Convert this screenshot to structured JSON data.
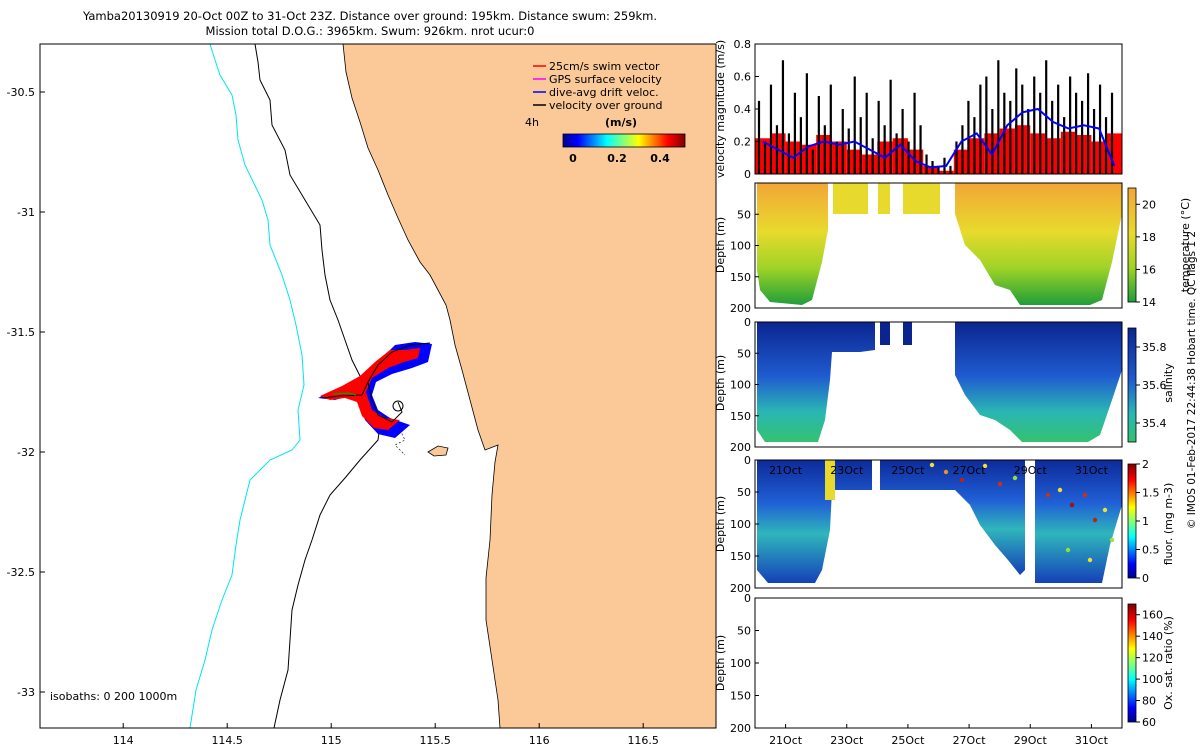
{
  "header": {
    "line1": "Yamba20130919 20-Oct 00Z to 31-Oct 23Z. Distance over ground: 195km. Distance swum: 259km.",
    "line2": "Mission total D.O.G.: 3965km. Swum: 926km. nrot ucur:0"
  },
  "colors": {
    "ocean": "#ffffff",
    "land": "#fbc898",
    "isobath_200": "#000000",
    "isobath_1000": "#00e5ee",
    "swim_vector": "#ff0000",
    "gps_surface_velocity": "#ff00ff",
    "dive_avg_drift": "#0000ff",
    "velocity_over_ground": "#000000"
  },
  "map": {
    "legend": [
      {
        "label": "25cm/s swim vector",
        "color": "#ff0000"
      },
      {
        "label": "GPS surface velocity",
        "color": "#ff00ff"
      },
      {
        "label": "dive-avg drift veloc.",
        "color": "#0000ff"
      },
      {
        "label": "velocity over ground",
        "color": "#000000"
      }
    ],
    "time_marker": "4h",
    "colorbar_title": "(m/s)",
    "colorbar_ticks": [
      "0",
      "0.2",
      "0.4"
    ],
    "isobath_label": "isobaths: 0   200  1000m"
  },
  "side_label": "© IMOS 01-Feb-2017 22:44:38 Hobart time. QC flags 1  2",
  "chart_data": [
    {
      "id": "map",
      "type": "scatter",
      "title": "",
      "xlim": [
        113.6,
        116.85
      ],
      "ylim": [
        -33.15,
        -30.3
      ],
      "x_ticks": [
        "114",
        "114.5",
        "115",
        "115.5",
        "116",
        "116.5"
      ],
      "y_ticks": [
        "-30.5",
        "-31",
        "-31.5",
        "-32",
        "-32.5",
        "-33"
      ],
      "glider_track": {
        "x": [
          115.5,
          115.35,
          115.2,
          115.15,
          115.12,
          115.0,
          114.9,
          115.05,
          115.15,
          115.2,
          115.15,
          115.1,
          115.2,
          115.3
        ],
        "y": [
          -31.6,
          -31.62,
          -31.68,
          -31.73,
          -31.77,
          -31.8,
          -31.8,
          -31.78,
          -31.75,
          -31.8,
          -31.85,
          -31.9,
          -31.92,
          -31.85
        ]
      },
      "grid": false
    },
    {
      "id": "velocity",
      "type": "bar",
      "ylabel": "velocity magnitude (m/s)",
      "ylim": [
        0,
        0.8
      ],
      "y_ticks": [
        "0",
        "0.2",
        "0.4",
        "0.6",
        "0.8"
      ],
      "series": [
        {
          "name": "",
          "color": "#ff0000",
          "values": [
            0.22,
            0.25,
            0.2,
            0.18,
            0.24,
            0.2,
            0.15,
            0.12,
            0.2,
            0.22,
            0.15,
            0.05,
            0.02,
            0.15,
            0.22,
            0.25,
            0.28,
            0.3,
            0.25,
            0.22,
            0.26,
            0.24,
            0.2,
            0.25
          ]
        },
        {
          "name": "",
          "color": "#0000ff",
          "values": [
            0.2,
            0.15,
            0.1,
            0.17,
            0.2,
            0.18,
            0.2,
            0.15,
            0.1,
            0.18,
            0.08,
            0.04,
            0.05,
            0.2,
            0.25,
            0.12,
            0.3,
            0.38,
            0.4,
            0.32,
            0.28,
            0.3,
            0.28,
            0.05
          ]
        }
      ],
      "x_days": [
        20,
        20.5,
        21,
        21.5,
        22,
        22.5,
        23,
        23.5,
        24,
        24.5,
        25,
        25.5,
        26,
        26.5,
        27,
        27.5,
        28,
        28.5,
        29,
        29.5,
        30,
        30.5,
        31,
        31.5
      ]
    },
    {
      "id": "temperature",
      "type": "heatmap",
      "ylabel": "Depth (m)",
      "colorbar_label": "temperature (°C)",
      "clim": [
        14,
        21
      ],
      "colorbar_ticks": [
        "14",
        "16",
        "18",
        "20"
      ],
      "ylim": [
        200,
        0
      ],
      "y_ticks": [
        "50",
        "100",
        "150",
        "200"
      ]
    },
    {
      "id": "salinity",
      "type": "heatmap",
      "ylabel": "Depth (m)",
      "colorbar_label": "salinity",
      "clim": [
        35.3,
        35.9
      ],
      "colorbar_ticks": [
        "35.4",
        "35.6",
        "35.8"
      ],
      "ylim": [
        200,
        0
      ],
      "y_ticks": [
        "0",
        "50",
        "100",
        "150",
        "200"
      ]
    },
    {
      "id": "fluorescence",
      "type": "heatmap",
      "ylabel": "Depth (m)",
      "colorbar_label": "fluor. (mg m-3)",
      "clim": [
        0,
        2
      ],
      "colorbar_ticks": [
        "0",
        "0.5",
        "1",
        "1.5",
        "2"
      ],
      "ylim": [
        200,
        0
      ],
      "y_ticks": [
        "0",
        "50",
        "100",
        "150",
        "200"
      ],
      "x_ticks": [
        "21Oct",
        "23Oct",
        "25Oct",
        "27Oct",
        "29Oct",
        "31Oct"
      ]
    },
    {
      "id": "oxygen",
      "type": "heatmap",
      "ylabel": "Depth (m)",
      "colorbar_label": "Ox. sat. ratio (%)",
      "clim": [
        60,
        170
      ],
      "colorbar_ticks": [
        "60",
        "80",
        "100",
        "120",
        "140",
        "160"
      ],
      "ylim": [
        200,
        0
      ],
      "y_ticks": [
        "0",
        "50",
        "100",
        "150",
        "200"
      ],
      "x_ticks": [
        "21Oct",
        "23Oct",
        "25Oct",
        "27Oct",
        "29Oct",
        "31Oct"
      ]
    }
  ]
}
